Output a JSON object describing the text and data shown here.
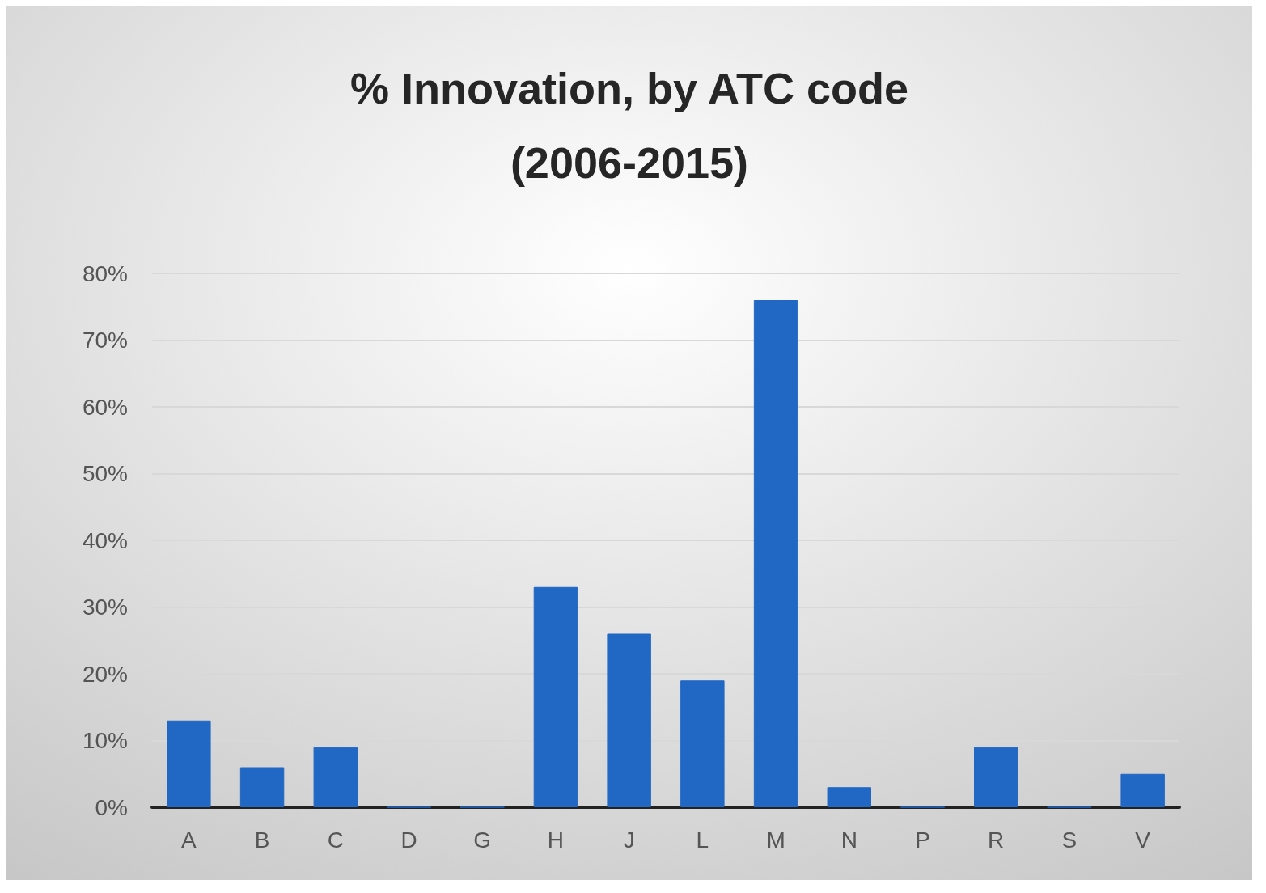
{
  "chart_data": {
    "type": "bar",
    "title": "% Innovation, by ATC code\n(2006-2015)",
    "categories": [
      "A",
      "B",
      "C",
      "D",
      "G",
      "H",
      "J",
      "L",
      "M",
      "N",
      "P",
      "R",
      "S",
      "V"
    ],
    "values": [
      13,
      6,
      9,
      0,
      0,
      33,
      26,
      19,
      76,
      3,
      0,
      9,
      0,
      5
    ],
    "color": "#2167c4",
    "ylim": [
      0,
      80
    ],
    "yticks": [
      {
        "value": 0,
        "label": "0%"
      },
      {
        "value": 10,
        "label": "10%"
      },
      {
        "value": 20,
        "label": "20%"
      },
      {
        "value": 30,
        "label": "30%"
      },
      {
        "value": 40,
        "label": "40%"
      },
      {
        "value": 50,
        "label": "50%"
      },
      {
        "value": 60,
        "label": "60%"
      },
      {
        "value": 70,
        "label": "70%"
      },
      {
        "value": 80,
        "label": "80%"
      }
    ],
    "grid": true
  }
}
